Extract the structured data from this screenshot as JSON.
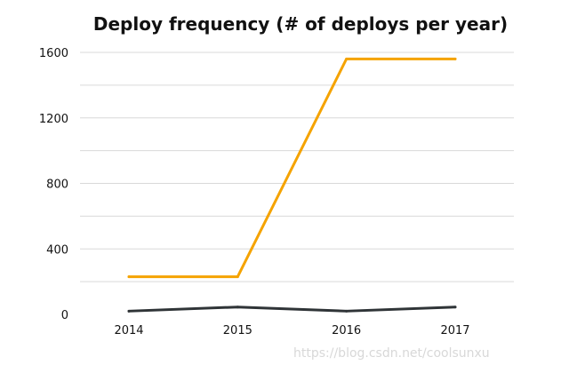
{
  "chart_data": {
    "type": "line",
    "title": "Deploy frequency (# of deploys per year)",
    "xlabel": "",
    "ylabel": "",
    "x": [
      "2014",
      "2015",
      "2016",
      "2017"
    ],
    "ylim": [
      0,
      1600
    ],
    "yticks": [
      "0",
      "400",
      "800",
      "1200",
      "1600"
    ],
    "grid": true,
    "legend": "none",
    "series": [
      {
        "values": [
          230,
          230,
          1560,
          1560
        ],
        "color": "#F5A300"
      },
      {
        "values": [
          20,
          45,
          20,
          45
        ],
        "color": "#2F3437"
      }
    ]
  },
  "watermark": "https://blog.csdn.net/coolsunxu"
}
